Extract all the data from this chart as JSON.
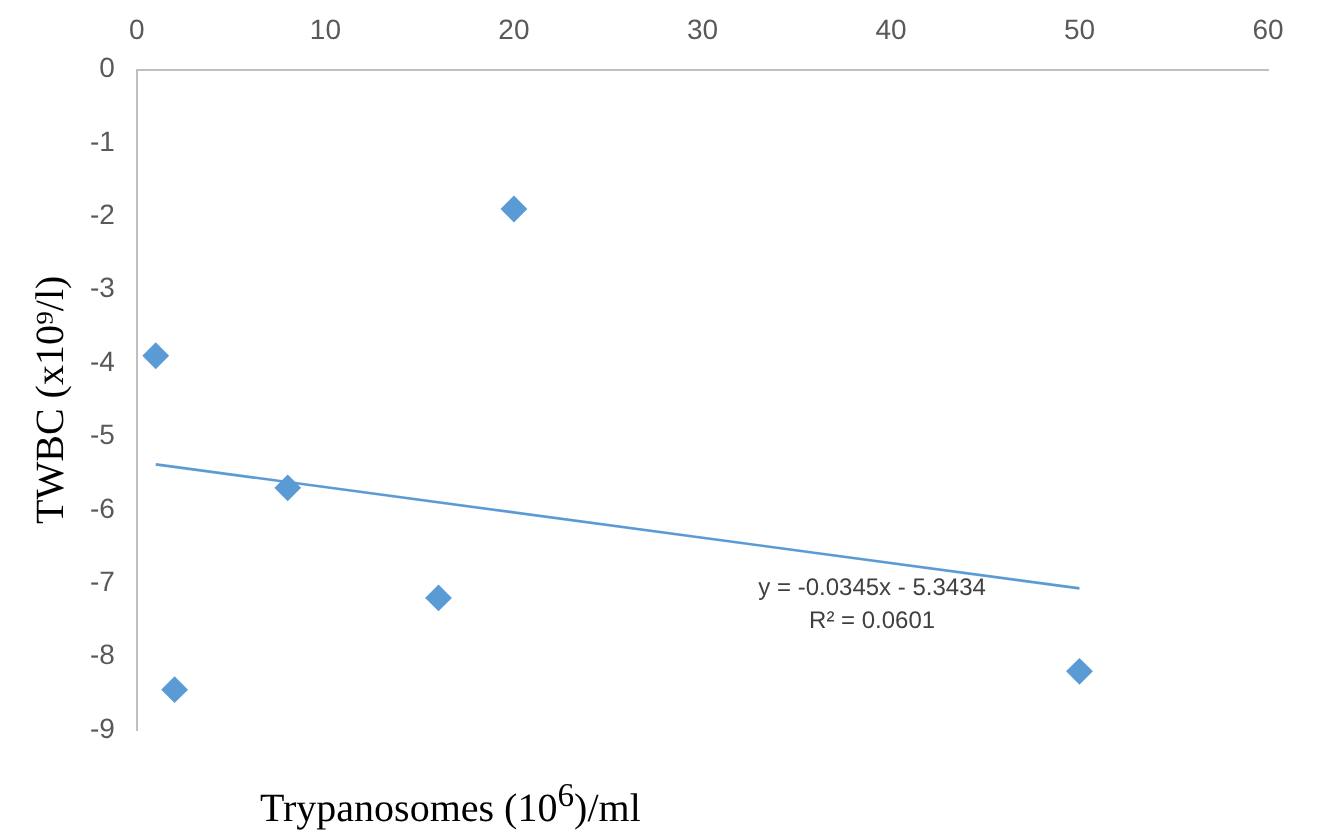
{
  "chart_data": {
    "type": "scatter",
    "xlabel": "Trypanosomes (10$^{6}$)/ml",
    "ylabel": "TWBC (x10⁹/l)",
    "xlim": [
      0,
      60
    ],
    "xticks": [
      0,
      10,
      20,
      30,
      40,
      50,
      60
    ],
    "ylim": [
      -9,
      0
    ],
    "yticks": [
      0,
      -1,
      -2,
      -3,
      -4,
      -5,
      -6,
      -7,
      -8,
      -9
    ],
    "grid": false,
    "legend": false,
    "marker": "diamond",
    "series": [
      {
        "color": "#5b9bd5",
        "x": [
          1,
          2,
          8,
          16,
          20,
          50
        ],
        "values": [
          -3.9,
          -8.45,
          -5.7,
          -7.2,
          -1.9,
          -8.2
        ]
      },
      {
        "type": "line",
        "color": "#5b9bd5",
        "marker": "none",
        "line_style": "solid",
        "x": [
          1,
          50
        ],
        "values": [
          -5.38,
          -7.07
        ]
      }
    ],
    "annotations": [
      "y = -0.0345x - 5.3434",
      "R² = 0.0601"
    ]
  }
}
